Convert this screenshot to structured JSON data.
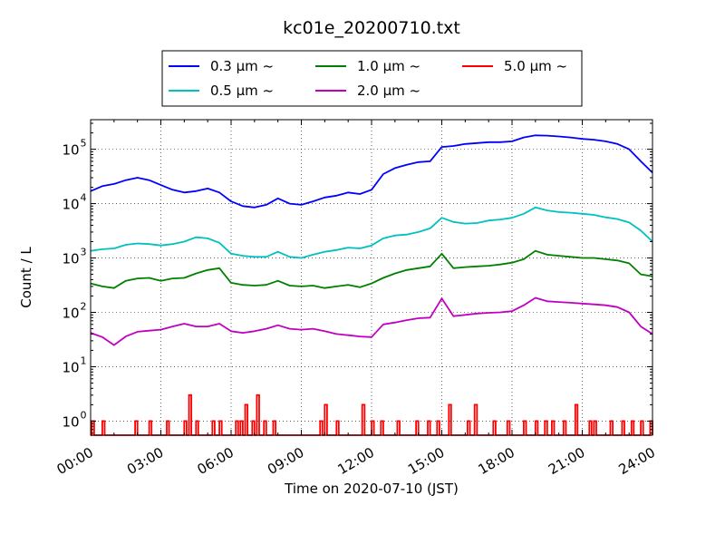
{
  "chart_data": {
    "type": "line",
    "title": "kc01e_20200710.txt",
    "xlabel": "Time on 2020-07-10 (JST)",
    "ylabel": "Count / L",
    "yscale": "log",
    "xlim": [
      "00:00",
      "24:00"
    ],
    "ylim": [
      0.55,
      350000
    ],
    "grid": true,
    "legend_position": "top-center",
    "x_ticks": [
      "00:00",
      "03:00",
      "06:00",
      "09:00",
      "12:00",
      "15:00",
      "18:00",
      "21:00",
      "24:00"
    ],
    "y_ticks": [
      {
        "value": 1,
        "base": "10",
        "exp": "0"
      },
      {
        "value": 10,
        "base": "10",
        "exp": "1"
      },
      {
        "value": 100,
        "base": "10",
        "exp": "2"
      },
      {
        "value": 1000,
        "base": "10",
        "exp": "3"
      },
      {
        "value": 10000,
        "base": "10",
        "exp": "4"
      },
      {
        "value": 100000,
        "base": "10",
        "exp": "5"
      }
    ],
    "x_hours": [
      0,
      0.5,
      1,
      1.5,
      2,
      2.5,
      3,
      3.5,
      4,
      4.5,
      5,
      5.5,
      6,
      6.5,
      7,
      7.5,
      8,
      8.5,
      9,
      9.5,
      10,
      10.5,
      11,
      11.5,
      12,
      12.5,
      13,
      13.5,
      14,
      14.5,
      15,
      15.5,
      16,
      16.5,
      17,
      17.5,
      18,
      18.5,
      19,
      19.5,
      20,
      20.5,
      21,
      21.5,
      22,
      22.5,
      23,
      23.5,
      24
    ],
    "series": [
      {
        "name": "0.3 μm ~",
        "color": "#0000ff",
        "values": [
          17000,
          21000,
          23000,
          27000,
          30000,
          27000,
          22000,
          18000,
          16000,
          17000,
          19000,
          16000,
          11000,
          9000,
          8500,
          9500,
          12500,
          10000,
          9500,
          11000,
          13000,
          14000,
          16000,
          15000,
          18000,
          35000,
          45000,
          52000,
          58000,
          60000,
          110000,
          115000,
          125000,
          130000,
          135000,
          135000,
          140000,
          165000,
          180000,
          178000,
          172000,
          165000,
          155000,
          150000,
          140000,
          125000,
          100000,
          60000,
          37000
        ]
      },
      {
        "name": "0.5 μm ~",
        "color": "#00c0c0",
        "values": [
          1350,
          1450,
          1500,
          1750,
          1850,
          1800,
          1700,
          1800,
          2000,
          2400,
          2300,
          1900,
          1200,
          1100,
          1050,
          1050,
          1300,
          1050,
          1000,
          1150,
          1300,
          1400,
          1550,
          1500,
          1700,
          2300,
          2600,
          2700,
          3000,
          3500,
          5500,
          4600,
          4300,
          4400,
          4900,
          5100,
          5500,
          6500,
          8500,
          7500,
          7000,
          6800,
          6500,
          6200,
          5600,
          5200,
          4500,
          3200,
          2000
        ]
      },
      {
        "name": "1.0 μm ~",
        "color": "#008000",
        "values": [
          340,
          300,
          280,
          380,
          420,
          430,
          380,
          420,
          430,
          520,
          600,
          650,
          350,
          320,
          310,
          320,
          380,
          310,
          300,
          310,
          280,
          300,
          320,
          290,
          340,
          430,
          520,
          600,
          650,
          700,
          1200,
          650,
          680,
          700,
          720,
          760,
          820,
          950,
          1350,
          1150,
          1100,
          1050,
          1000,
          1000,
          950,
          900,
          800,
          500,
          460
        ]
      },
      {
        "name": "2.0 μm ~",
        "color": "#c000c0",
        "values": [
          42,
          35,
          25,
          36,
          44,
          46,
          48,
          55,
          62,
          55,
          55,
          62,
          45,
          42,
          45,
          50,
          58,
          50,
          48,
          50,
          45,
          40,
          38,
          36,
          35,
          60,
          65,
          72,
          78,
          80,
          180,
          85,
          90,
          95,
          98,
          100,
          105,
          135,
          185,
          160,
          155,
          150,
          145,
          140,
          135,
          125,
          100,
          55,
          40
        ]
      }
    ],
    "event_series": {
      "name": "5.0 μm ~",
      "color": "#ff0000",
      "baseline": 0.55,
      "points": [
        [
          0.05,
          1
        ],
        [
          0.5,
          1
        ],
        [
          1.9,
          1
        ],
        [
          2.5,
          1
        ],
        [
          3.25,
          1
        ],
        [
          4.0,
          1
        ],
        [
          4.2,
          3
        ],
        [
          4.5,
          1
        ],
        [
          5.2,
          1
        ],
        [
          5.5,
          1
        ],
        [
          6.2,
          1
        ],
        [
          6.4,
          1
        ],
        [
          6.6,
          2
        ],
        [
          6.9,
          1
        ],
        [
          7.1,
          3
        ],
        [
          7.4,
          1
        ],
        [
          7.8,
          1
        ],
        [
          9.8,
          1
        ],
        [
          10.0,
          2
        ],
        [
          10.5,
          1
        ],
        [
          11.6,
          2
        ],
        [
          12.0,
          1
        ],
        [
          12.4,
          1
        ],
        [
          13.1,
          1
        ],
        [
          13.9,
          1
        ],
        [
          14.4,
          1
        ],
        [
          14.8,
          1
        ],
        [
          15.3,
          2
        ],
        [
          16.1,
          1
        ],
        [
          16.4,
          2
        ],
        [
          17.2,
          1
        ],
        [
          17.8,
          1
        ],
        [
          18.5,
          1
        ],
        [
          19.0,
          1
        ],
        [
          19.4,
          1
        ],
        [
          19.7,
          1
        ],
        [
          20.2,
          1
        ],
        [
          20.7,
          2
        ],
        [
          21.3,
          1
        ],
        [
          21.5,
          1
        ],
        [
          22.2,
          1
        ],
        [
          22.7,
          1
        ],
        [
          23.1,
          1
        ],
        [
          23.5,
          1
        ],
        [
          23.9,
          1
        ]
      ]
    }
  }
}
